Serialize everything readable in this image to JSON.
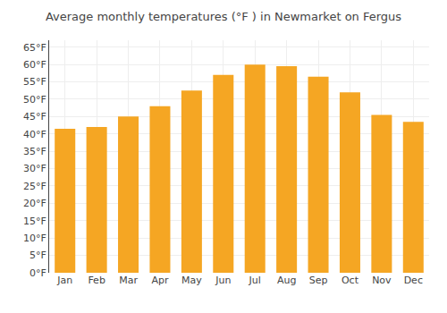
{
  "chart_data": {
    "type": "bar",
    "title": "Average monthly temperatures (°F ) in Newmarket on Fergus",
    "categories": [
      "Jan",
      "Feb",
      "Mar",
      "Apr",
      "May",
      "Jun",
      "Jul",
      "Aug",
      "Sep",
      "Oct",
      "Nov",
      "Dec"
    ],
    "values": [
      41.5,
      42.0,
      45.0,
      48.0,
      52.5,
      57.0,
      60.0,
      59.5,
      56.5,
      52.0,
      45.5,
      43.5
    ],
    "color": "#F5A623",
    "ylim": [
      0,
      67
    ],
    "yticks": [
      {
        "value": 0,
        "label": "0°F"
      },
      {
        "value": 5,
        "label": "5°F"
      },
      {
        "value": 10,
        "label": "10°F"
      },
      {
        "value": 15,
        "label": "15°F"
      },
      {
        "value": 20,
        "label": "20°F"
      },
      {
        "value": 25,
        "label": "25°F"
      },
      {
        "value": 30,
        "label": "30°F"
      },
      {
        "value": 35,
        "label": "35°F"
      },
      {
        "value": 40,
        "label": "40°F"
      },
      {
        "value": 45,
        "label": "45°F"
      },
      {
        "value": 50,
        "label": "50°F"
      },
      {
        "value": 55,
        "label": "55°F"
      },
      {
        "value": 60,
        "label": "60°F"
      },
      {
        "value": 65,
        "label": "65°F"
      }
    ],
    "grid": true
  }
}
